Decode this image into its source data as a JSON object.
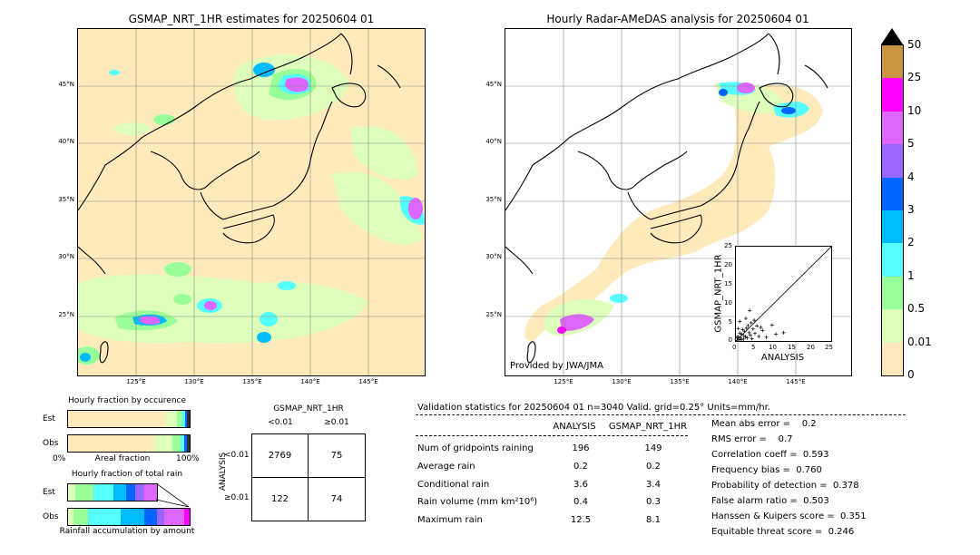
{
  "left_map": {
    "title": "GSMAP_NRT_1HR estimates for 20250604 01",
    "lat_labels": [
      "45°N",
      "40°N",
      "35°N",
      "30°N",
      "25°N"
    ],
    "lon_labels": [
      "125°E",
      "130°E",
      "135°E",
      "140°E",
      "145°E"
    ]
  },
  "right_map": {
    "title": "Hourly Radar-AMeDAS analysis for 20250604 01",
    "lat_labels": [
      "45°N",
      "40°N",
      "35°N",
      "30°N",
      "25°N"
    ],
    "lon_labels": [
      "125°E",
      "130°E",
      "135°E",
      "140°E",
      "145°E"
    ],
    "credit": "Provided by JWA/JMA"
  },
  "scatter": {
    "xlabel": "ANALYSIS",
    "ylabel": "GSMAP_NRT_1HR",
    "ticks": [
      "0",
      "5",
      "10",
      "15",
      "20",
      "25"
    ]
  },
  "colorbar": {
    "labels": [
      "50",
      "25",
      "10",
      "5",
      "4",
      "3",
      "2",
      "1",
      "0.5",
      "0.01",
      "0"
    ],
    "colors": [
      "#c89640",
      "#ff00ff",
      "#dd66ff",
      "#9966ff",
      "#0066ff",
      "#00bbff",
      "#55ffff",
      "#99ff99",
      "#ddffbb",
      "#ffe8bb"
    ]
  },
  "occurrence": {
    "title": "Hourly fraction by occurence",
    "est_label": "Est",
    "obs_label": "Obs",
    "axis_left": "0%",
    "axis_mid": "Areal fraction",
    "axis_right": "100%"
  },
  "total_rain": {
    "title": "Hourly fraction of total rain",
    "est_label": "Est",
    "obs_label": "Obs",
    "footer": "Rainfall accumulation by amount"
  },
  "contingency": {
    "col_header": "GSMAP_NRT_1HR",
    "col_lt": "<0.01",
    "col_ge": "≥0.01",
    "row_header": "ANALYSIS",
    "row_lt": "<0.01",
    "row_ge": "≥0.01",
    "a": "2769",
    "b": "75",
    "c": "122",
    "d": "74"
  },
  "validation": {
    "header": "Validation statistics for 20250604 01  n=3040 Valid. grid=0.25° Units=mm/hr.",
    "col1": "ANALYSIS",
    "col2": "GSMAP_NRT_1HR",
    "rows": [
      {
        "label": "Num of gridpoints raining",
        "a": "196",
        "b": "149"
      },
      {
        "label": "Average rain",
        "a": "0.2",
        "b": "0.2"
      },
      {
        "label": "Conditional rain",
        "a": "3.6",
        "b": "3.4"
      },
      {
        "label": "Rain volume (mm km²10⁶)",
        "a": "0.4",
        "b": "0.3"
      },
      {
        "label": "Maximum rain",
        "a": "12.5",
        "b": "8.1"
      }
    ],
    "scores": [
      "Mean abs error =    0.2",
      "RMS error =    0.7",
      "Correlation coeff =  0.593",
      "Frequency bias =  0.760",
      "Probability of detection =  0.378",
      "False alarm ratio =  0.503",
      "Hanssen & Kuipers score =  0.351",
      "Equitable threat score =  0.246"
    ]
  },
  "chart_data": {
    "type": "scatter",
    "title": "",
    "xlabel": "ANALYSIS",
    "ylabel": "GSMAP_NRT_1HR",
    "xlim": [
      0,
      25
    ],
    "ylim": [
      0,
      25
    ],
    "points": [
      [
        0.3,
        0.2
      ],
      [
        0.5,
        1.2
      ],
      [
        0.8,
        0.4
      ],
      [
        1.0,
        2.1
      ],
      [
        1.2,
        0.9
      ],
      [
        1.5,
        1.8
      ],
      [
        1.8,
        3.0
      ],
      [
        2.0,
        0.5
      ],
      [
        2.2,
        2.6
      ],
      [
        2.5,
        1.1
      ],
      [
        2.8,
        3.4
      ],
      [
        3.0,
        0.8
      ],
      [
        3.2,
        4.1
      ],
      [
        3.5,
        2.2
      ],
      [
        3.8,
        1.5
      ],
      [
        4.0,
        4.8
      ],
      [
        4.2,
        0.6
      ],
      [
        4.5,
        3.2
      ],
      [
        4.8,
        5.5
      ],
      [
        5.0,
        2.0
      ],
      [
        5.5,
        4.0
      ],
      [
        6.0,
        1.2
      ],
      [
        6.5,
        3.6
      ],
      [
        7.0,
        2.8
      ],
      [
        8.0,
        1.0
      ],
      [
        9.5,
        4.2
      ],
      [
        10.5,
        1.8
      ],
      [
        12.5,
        2.2
      ],
      [
        1.0,
        5.2
      ],
      [
        0.6,
        3.3
      ],
      [
        2.6,
        6.0
      ],
      [
        3.6,
        8.1
      ],
      [
        1.4,
        0.3
      ],
      [
        0.4,
        0.9
      ],
      [
        2.1,
        1.4
      ]
    ]
  }
}
